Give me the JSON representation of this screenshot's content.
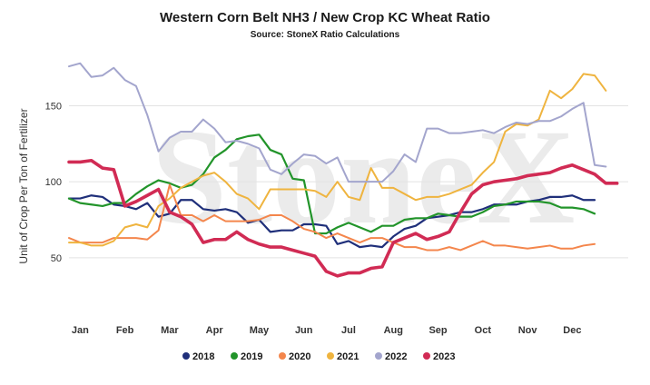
{
  "chart_data": {
    "type": "line",
    "title": "Western Corn Belt NH3 / New Crop KC Wheat Ratio",
    "subtitle": "Source: StoneX Ratio Calculations",
    "ylabel": "Unit of Crop Per Ton of Fertilizer",
    "watermark": "StoneX",
    "ylim": [
      20,
      185
    ],
    "yticks": [
      50,
      100,
      150
    ],
    "xlim": [
      0,
      50
    ],
    "month_labels": [
      "Jan",
      "Feb",
      "Mar",
      "Apr",
      "May",
      "Jun",
      "Jul",
      "Aug",
      "Sep",
      "Oct",
      "Nov",
      "Dec"
    ],
    "month_positions": [
      1,
      5,
      9,
      13,
      17,
      21,
      25,
      29,
      33,
      37,
      41,
      45
    ],
    "legend_position": "bottom",
    "grid": true,
    "series": [
      {
        "name": "2018",
        "color": "#1f2f7a",
        "width": 2.2,
        "values": [
          89,
          89,
          91,
          90,
          85,
          84,
          82,
          86,
          77,
          79,
          88,
          88,
          82,
          81,
          82,
          80,
          73,
          75,
          67,
          68,
          68,
          72,
          72,
          71,
          59,
          61,
          57,
          58,
          57,
          64,
          69,
          71,
          76,
          77,
          78,
          80,
          80,
          82,
          85,
          85,
          85,
          87,
          88,
          90,
          90,
          91,
          88,
          88
        ]
      },
      {
        "name": "2019",
        "color": "#22942a",
        "width": 2.2,
        "values": [
          89,
          86,
          85,
          84,
          86,
          86,
          92,
          97,
          101,
          99,
          96,
          98,
          105,
          116,
          121,
          128,
          130,
          131,
          121,
          118,
          102,
          101,
          66,
          66,
          70,
          73,
          70,
          67,
          71,
          71,
          75,
          76,
          76,
          79,
          78,
          77,
          77,
          80,
          84,
          85,
          87,
          87,
          87,
          86,
          83,
          83,
          82,
          79
        ]
      },
      {
        "name": "2020",
        "color": "#f4864c",
        "width": 2.0,
        "values": [
          63,
          60,
          60,
          60,
          63,
          63,
          63,
          62,
          68,
          98,
          78,
          78,
          74,
          78,
          74,
          74,
          74,
          75,
          78,
          78,
          74,
          69,
          67,
          63,
          66,
          63,
          60,
          63,
          63,
          60,
          57,
          57,
          55,
          55,
          57,
          55,
          58,
          61,
          58,
          58,
          57,
          56,
          57,
          58,
          56,
          56,
          58,
          59
        ]
      },
      {
        "name": "2021",
        "color": "#efb43f",
        "width": 2.0,
        "values": [
          60,
          60,
          58,
          58,
          61,
          70,
          72,
          70,
          84,
          89,
          96,
          100,
          104,
          106,
          100,
          92,
          89,
          82,
          95,
          95,
          95,
          95,
          94,
          90,
          100,
          90,
          88,
          109,
          96,
          96,
          92,
          88,
          90,
          90,
          92,
          95,
          98,
          106,
          113,
          133,
          138,
          137,
          141,
          160,
          155,
          161,
          171,
          170,
          160
        ]
      },
      {
        "name": "2022",
        "color": "#a3a5cd",
        "width": 2.0,
        "values": [
          176,
          178,
          169,
          170,
          175,
          167,
          163,
          144,
          120,
          129,
          133,
          133,
          141,
          135,
          126,
          127,
          125,
          122,
          108,
          105,
          112,
          118,
          117,
          112,
          116,
          100,
          100,
          100,
          100,
          107,
          118,
          113,
          135,
          135,
          132,
          132,
          133,
          134,
          132,
          136,
          139,
          138,
          140,
          140,
          143,
          148,
          152,
          111,
          110
        ]
      },
      {
        "name": "2023",
        "color": "#d12b54",
        "width": 3.6,
        "values": [
          113,
          113,
          114,
          109,
          108,
          84,
          87,
          91,
          95,
          80,
          77,
          72,
          60,
          62,
          62,
          67,
          62,
          59,
          57,
          57,
          55,
          53,
          51,
          41,
          38,
          40,
          40,
          43,
          44,
          60,
          63,
          66,
          62,
          64,
          67,
          80,
          92,
          98,
          100,
          101,
          102,
          104,
          105,
          106,
          109,
          111,
          108,
          105,
          99,
          99
        ]
      }
    ]
  }
}
